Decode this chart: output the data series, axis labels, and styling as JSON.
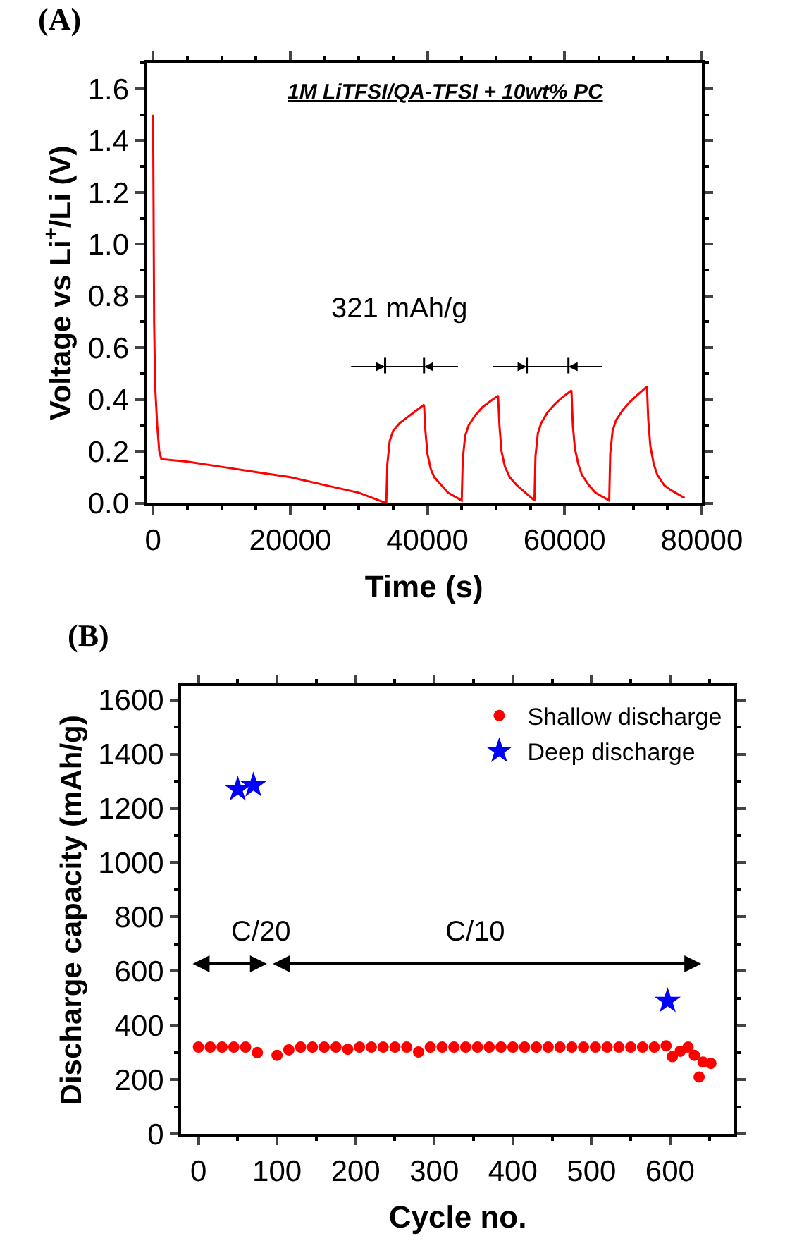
{
  "chart_data": [
    {
      "type": "line",
      "xlabel": "Time (s)",
      "ylabel": "Voltage vs Li$^{+}$/Li (V)",
      "annotations": [
        "(A)",
        "1M LiTFSI/QA-TFSI + 10wt% PC",
        "321 mAh/g"
      ],
      "series": [
        {
          "color": "#ff0000",
          "x": [
            0,
            150,
            300,
            600,
            900,
            1200,
            5000,
            10000,
            15000,
            20000,
            25000,
            30000,
            34000,
            34150,
            34500,
            35000,
            36000,
            37000,
            38000,
            39500,
            39700,
            40000,
            40500,
            41000,
            42000,
            43000,
            45000,
            45150,
            45500,
            46000,
            47000,
            48000,
            49000,
            50300,
            50500,
            50800,
            51300,
            52000,
            53000,
            55600,
            55750,
            56100,
            56600,
            57500,
            58500,
            59500,
            61000,
            61200,
            61500,
            62000,
            62500,
            63500,
            64500,
            66500,
            66650,
            67000,
            67500,
            68500,
            69500,
            70500,
            72000,
            72200,
            72500,
            73000,
            73500,
            74500,
            75500,
            77500
          ],
          "values": [
            1.5,
            0.7,
            0.45,
            0.3,
            0.2,
            0.17,
            0.16,
            0.14,
            0.12,
            0.1,
            0.07,
            0.04,
            0.0,
            0.15,
            0.24,
            0.28,
            0.31,
            0.33,
            0.35,
            0.38,
            0.28,
            0.19,
            0.13,
            0.1,
            0.07,
            0.04,
            0.01,
            0.17,
            0.26,
            0.3,
            0.34,
            0.37,
            0.39,
            0.415,
            0.3,
            0.2,
            0.14,
            0.1,
            0.07,
            0.01,
            0.18,
            0.27,
            0.31,
            0.35,
            0.38,
            0.405,
            0.435,
            0.3,
            0.21,
            0.15,
            0.11,
            0.07,
            0.04,
            0.01,
            0.19,
            0.28,
            0.32,
            0.36,
            0.39,
            0.415,
            0.45,
            0.32,
            0.22,
            0.15,
            0.11,
            0.07,
            0.05,
            0.02
          ]
        }
      ],
      "xlim": [
        -1000,
        80000
      ],
      "xticks": [
        0,
        20000,
        40000,
        60000,
        80000
      ],
      "ylim": [
        0,
        1.7
      ],
      "yticks": [
        {
          "value": 0,
          "label": "0.0"
        },
        0.2,
        0.4,
        0.6,
        0.8,
        {
          "value": 1,
          "label": "1.0"
        },
        1.2,
        1.4,
        1.6
      ],
      "grid": false,
      "legend": false,
      "marker": "none",
      "line_style": "solid"
    },
    {
      "type": "scatter",
      "xlabel": "Cycle no.",
      "ylabel": "Discharge capacity (mAh/g)",
      "annotations": [
        "(B)",
        "C/20",
        "C/10"
      ],
      "series": [
        {
          "name": "Shallow discharge",
          "color": "#ff0000",
          "marker": "circle",
          "x": [
            0,
            15,
            30,
            45,
            60,
            75,
            100,
            115,
            130,
            145,
            160,
            175,
            190,
            205,
            220,
            235,
            250,
            265,
            280,
            295,
            310,
            325,
            340,
            355,
            370,
            385,
            400,
            415,
            430,
            445,
            460,
            475,
            490,
            505,
            520,
            535,
            550,
            565,
            580,
            595,
            603,
            613,
            623,
            631,
            637,
            642,
            652
          ],
          "values": [
            320,
            320,
            320,
            320,
            320,
            300,
            290,
            310,
            320,
            320,
            320,
            320,
            312,
            320,
            320,
            320,
            320,
            320,
            302,
            320,
            320,
            320,
            320,
            320,
            320,
            320,
            320,
            320,
            320,
            320,
            320,
            320,
            320,
            320,
            320,
            320,
            320,
            320,
            320,
            325,
            285,
            305,
            320,
            290,
            210,
            265,
            260
          ]
        },
        {
          "name": "Deep discharge",
          "color": "#0000ff",
          "marker": "star",
          "x": [
            50,
            70,
            597
          ],
          "values": [
            1270,
            1285,
            490
          ]
        }
      ],
      "xlim": [
        -22,
        682
      ],
      "xticks": [
        0,
        100,
        200,
        300,
        400,
        500,
        600
      ],
      "ylim": [
        0,
        1650
      ],
      "yticks": [
        0,
        200,
        400,
        600,
        800,
        1000,
        1200,
        1400,
        1600
      ],
      "grid": false,
      "legend": "top right"
    }
  ]
}
